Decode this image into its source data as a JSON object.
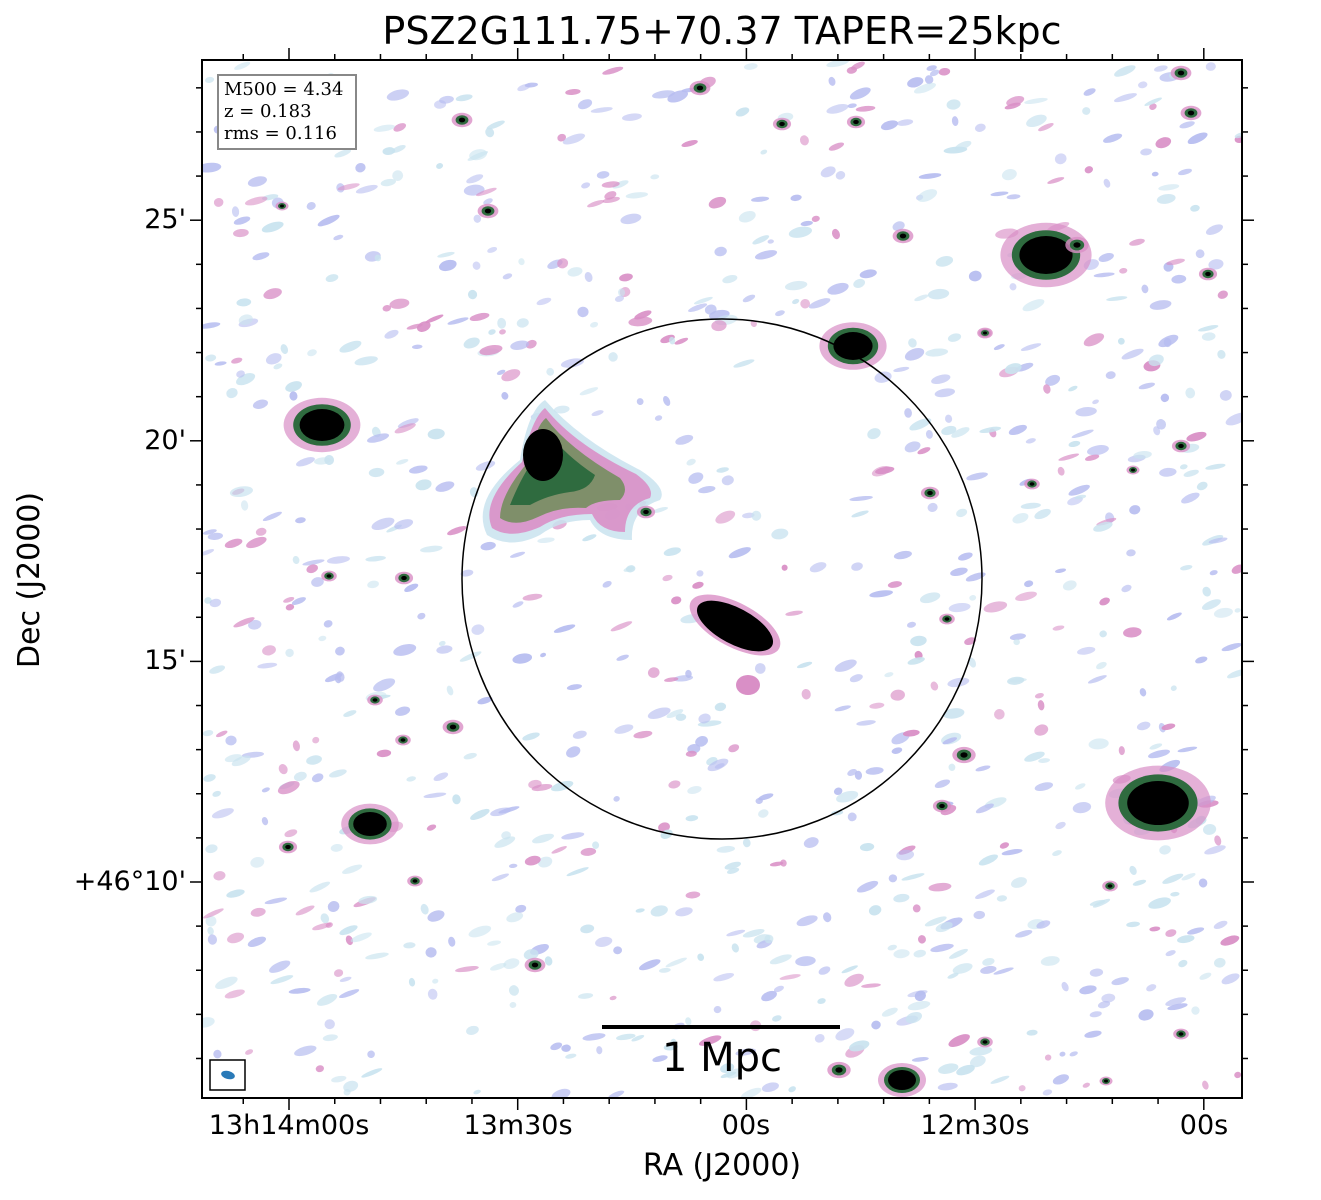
{
  "title": "PSZ2G111.75+70.37 TAPER=25kpc",
  "xaxis": {
    "label": "RA (J2000)",
    "ticks": [
      "13h14m00s",
      "13m30s",
      "00s",
      "12m30s",
      "00s"
    ]
  },
  "yaxis": {
    "label": "Dec (J2000)",
    "ticks": [
      "25'",
      "20'",
      "15'",
      "+46°10'"
    ]
  },
  "info": {
    "m500": "M500 = 4.34",
    "z": "z = 0.183",
    "rms": "rms = 0.116"
  },
  "scalebar": {
    "label": "1 Mpc"
  },
  "colors": {
    "source_core": "#000000",
    "contour_green": "#2f6b3f",
    "contour_magenta": "#d98fc6",
    "contour_lavender": "#b7bdf0",
    "contour_pale": "#c9e3ef",
    "beam": "#2a7ab8"
  }
}
